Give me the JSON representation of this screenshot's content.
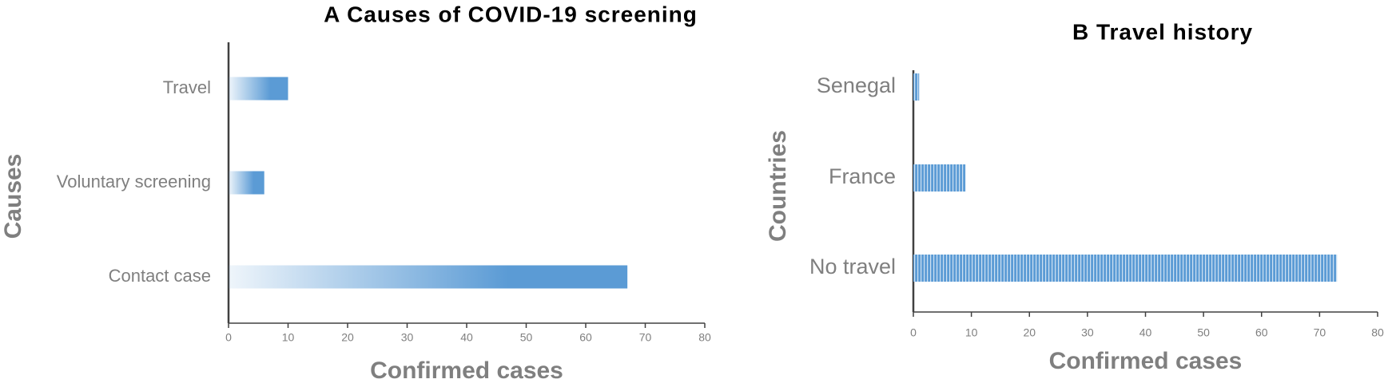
{
  "chart_data": [
    {
      "type": "bar",
      "orientation": "horizontal",
      "title": "A Causes of COVID-19 screening",
      "x_label": "Confirmed cases",
      "y_label": "Causes",
      "categories": [
        "Travel",
        "Voluntary screening",
        "Contact case"
      ],
      "values": [
        10,
        6,
        67
      ],
      "color": "#5b9bd5",
      "xlim": [
        0,
        80
      ],
      "xticks": [
        0,
        10,
        20,
        30,
        40,
        50,
        60,
        70,
        80
      ]
    },
    {
      "type": "bar",
      "orientation": "horizontal",
      "title": "B Travel history",
      "x_label": "Confirmed cases",
      "y_label": "Countries",
      "categories": [
        "Senegal",
        "France",
        "No travel"
      ],
      "values": [
        1,
        9,
        73
      ],
      "color": "#5b9bd5",
      "xlim": [
        0,
        80
      ],
      "xticks": [
        0,
        10,
        20,
        30,
        40,
        50,
        60,
        70,
        80
      ]
    }
  ]
}
